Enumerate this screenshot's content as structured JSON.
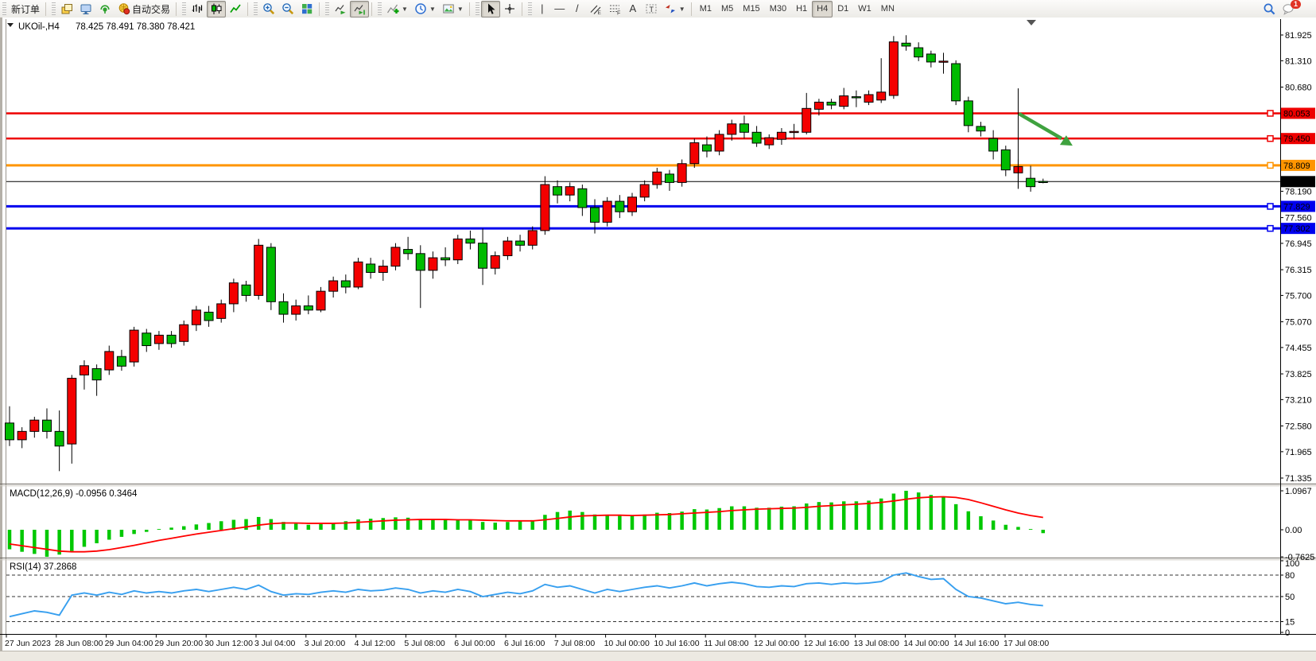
{
  "toolbar": {
    "groups": [
      {
        "items": [
          {
            "name": "new-order-button",
            "label": "新订单"
          }
        ]
      },
      {
        "items": [
          {
            "name": "charts-stack-button",
            "icon": "layers"
          },
          {
            "name": "terminal-button",
            "icon": "terminal"
          },
          {
            "name": "data-signal-button",
            "icon": "signal"
          },
          {
            "name": "autotrading-button",
            "icon": "autotrade",
            "label": "自动交易"
          }
        ]
      },
      {
        "items": [
          {
            "name": "bar-chart-button",
            "icon": "chart-bars"
          },
          {
            "name": "candlestick-chart-button",
            "icon": "chart-candles",
            "pressed": true
          },
          {
            "name": "line-chart-button",
            "icon": "chart-line"
          }
        ]
      },
      {
        "items": [
          {
            "name": "zoom-in-button",
            "icon": "zoom-in"
          },
          {
            "name": "zoom-out-button",
            "icon": "zoom-out"
          },
          {
            "name": "tile-windows-button",
            "icon": "tile-windows"
          }
        ]
      },
      {
        "items": [
          {
            "name": "auto-scroll-button",
            "icon": "auto-scroll"
          },
          {
            "name": "chart-shift-button",
            "icon": "chart-shift",
            "pressed": true
          }
        ]
      },
      {
        "items": [
          {
            "name": "indicators-button",
            "icon": "indicators-add",
            "caret": true
          },
          {
            "name": "periods-button",
            "icon": "periods-clock",
            "caret": true
          },
          {
            "name": "templates-button",
            "icon": "templates",
            "caret": true
          }
        ]
      },
      {
        "items": [
          {
            "name": "cursor-button",
            "icon": "cursor",
            "pressed": true
          },
          {
            "name": "crosshair-button",
            "icon": "crosshair"
          }
        ]
      },
      {
        "items": [
          {
            "name": "vertical-line-button",
            "glyph": "|"
          },
          {
            "name": "horizontal-line-button",
            "glyph": "—"
          },
          {
            "name": "trendline-button",
            "glyph": "/"
          },
          {
            "name": "equidistant-channel-button",
            "icon": "channel"
          },
          {
            "name": "fibonacci-button",
            "icon": "fibonacci"
          },
          {
            "name": "text-button",
            "glyph": "A"
          },
          {
            "name": "text-label-button",
            "icon": "text-label"
          },
          {
            "name": "arrows-tool-button",
            "icon": "arrows-tool",
            "caret": true
          }
        ]
      }
    ],
    "timeframes": [
      {
        "name": "tf-m1",
        "label": "M1"
      },
      {
        "name": "tf-m5",
        "label": "M5"
      },
      {
        "name": "tf-m15",
        "label": "M15"
      },
      {
        "name": "tf-m30",
        "label": "M30"
      },
      {
        "name": "tf-h1",
        "label": "H1"
      },
      {
        "name": "tf-h4",
        "label": "H4",
        "pressed": true
      },
      {
        "name": "tf-d1",
        "label": "D1"
      },
      {
        "name": "tf-w1",
        "label": "W1"
      },
      {
        "name": "tf-mn",
        "label": "MN"
      }
    ],
    "right": [
      {
        "name": "search-button",
        "icon": "search"
      },
      {
        "name": "notifications-button",
        "icon": "chat",
        "badge": "1"
      }
    ]
  },
  "chart": {
    "title": "UKOil-,H4",
    "ohlc_text": "78.425 78.491 78.380 78.421"
  },
  "chart_data": {
    "type": "candlestick",
    "symbol": "UKOil-",
    "timeframe": "H4",
    "current_bar": {
      "open": 78.425,
      "high": 78.491,
      "low": 78.38,
      "close": 78.421
    },
    "colors": {
      "bull_candle": "#f40000",
      "bear_candle": "#00bb00",
      "wick": "#000000",
      "macd_histogram": "#00c800",
      "macd_signal": "#ff0000",
      "rsi_line": "#379fef",
      "level_red": "#ee0000",
      "level_orange": "#ff9500",
      "level_blue": "#0000ee",
      "price_line": "#000000",
      "arrow_annotation": "#3fa23f"
    },
    "ylim": [
      71.335,
      81.925
    ],
    "y_axis_ticks": [
      "81.925",
      "81.310",
      "80.680",
      "78.190",
      "77.560",
      "76.945",
      "76.315",
      "75.700",
      "75.070",
      "74.455",
      "73.825",
      "73.210",
      "72.580",
      "71.965",
      "71.335"
    ],
    "horizontal_lines": [
      {
        "price": 80.053,
        "label": "80.053",
        "color": "#ee0000",
        "width": 2.5,
        "is_price_line": false
      },
      {
        "price": 79.45,
        "label": "79.450",
        "color": "#ee0000",
        "width": 2.5,
        "is_price_line": false
      },
      {
        "price": 78.809,
        "label": "78.809",
        "color": "#ff9500",
        "width": 3,
        "is_price_line": false
      },
      {
        "price": 78.421,
        "label": "78.421",
        "color": "#000000",
        "width": 1,
        "is_price_line": true
      },
      {
        "price": 77.829,
        "label": "77.829",
        "color": "#0000ee",
        "width": 3,
        "is_price_line": false
      },
      {
        "price": 77.302,
        "label": "77.302",
        "color": "#0000ee",
        "width": 3,
        "is_price_line": false
      }
    ],
    "time_labels": [
      "27 Jun 2023",
      "28 Jun 08:00",
      "29 Jun 04:00",
      "29 Jun 20:00",
      "30 Jun 12:00",
      "3 Jul 04:00",
      "3 Jul 20:00",
      "4 Jul 12:00",
      "5 Jul 08:00",
      "6 Jul 00:00",
      "6 Jul 16:00",
      "7 Jul 08:00",
      "10 Jul 00:00",
      "10 Jul 16:00",
      "11 Jul 08:00",
      "12 Jul 00:00",
      "12 Jul 16:00",
      "13 Jul 08:00",
      "14 Jul 00:00",
      "14 Jul 16:00",
      "17 Jul 08:00"
    ],
    "candles_ohlc": [
      [
        72.65,
        73.05,
        72.1,
        72.25
      ],
      [
        72.25,
        72.55,
        72.05,
        72.45
      ],
      [
        72.45,
        72.8,
        72.3,
        72.72
      ],
      [
        72.72,
        73.0,
        72.28,
        72.45
      ],
      [
        72.45,
        72.95,
        71.5,
        72.1
      ],
      [
        72.15,
        73.8,
        71.68,
        73.72
      ],
      [
        73.8,
        74.15,
        73.45,
        74.02
      ],
      [
        73.95,
        74.05,
        73.3,
        73.68
      ],
      [
        73.92,
        74.5,
        73.8,
        74.36
      ],
      [
        74.24,
        74.4,
        73.9,
        74.01
      ],
      [
        74.11,
        74.95,
        74.0,
        74.87
      ],
      [
        74.8,
        74.9,
        74.35,
        74.5
      ],
      [
        74.55,
        74.85,
        74.4,
        74.75
      ],
      [
        74.75,
        74.85,
        74.45,
        74.55
      ],
      [
        74.6,
        75.1,
        74.5,
        75.0
      ],
      [
        75.0,
        75.45,
        74.85,
        75.35
      ],
      [
        75.3,
        75.45,
        74.95,
        75.1
      ],
      [
        75.15,
        75.6,
        75.05,
        75.5
      ],
      [
        75.5,
        76.1,
        75.3,
        76.0
      ],
      [
        75.95,
        76.05,
        75.55,
        75.7
      ],
      [
        75.7,
        77.05,
        75.6,
        76.9
      ],
      [
        76.85,
        76.95,
        75.35,
        75.55
      ],
      [
        75.55,
        75.75,
        75.05,
        75.25
      ],
      [
        75.25,
        75.6,
        75.1,
        75.45
      ],
      [
        75.45,
        75.7,
        75.25,
        75.35
      ],
      [
        75.35,
        75.9,
        75.3,
        75.8
      ],
      [
        75.8,
        76.15,
        75.65,
        76.05
      ],
      [
        76.05,
        76.2,
        75.75,
        75.9
      ],
      [
        75.9,
        76.6,
        75.85,
        76.5
      ],
      [
        76.45,
        76.6,
        76.1,
        76.25
      ],
      [
        76.25,
        76.55,
        76.05,
        76.4
      ],
      [
        76.4,
        76.95,
        76.3,
        76.85
      ],
      [
        76.8,
        77.1,
        76.55,
        76.7
      ],
      [
        76.7,
        76.9,
        75.4,
        76.3
      ],
      [
        76.3,
        76.75,
        76.1,
        76.6
      ],
      [
        76.6,
        76.85,
        76.4,
        76.55
      ],
      [
        76.55,
        77.15,
        76.45,
        77.05
      ],
      [
        77.05,
        77.25,
        76.8,
        76.95
      ],
      [
        76.95,
        77.3,
        75.95,
        76.35
      ],
      [
        76.35,
        76.75,
        76.2,
        76.65
      ],
      [
        76.65,
        77.1,
        76.55,
        77.0
      ],
      [
        77.0,
        77.15,
        76.75,
        76.9
      ],
      [
        76.9,
        77.35,
        76.8,
        77.25
      ],
      [
        77.25,
        78.55,
        77.15,
        78.35
      ],
      [
        78.3,
        78.45,
        77.9,
        78.1
      ],
      [
        78.1,
        78.4,
        77.95,
        78.3
      ],
      [
        78.25,
        78.35,
        77.6,
        77.8
      ],
      [
        77.8,
        78.0,
        77.18,
        77.45
      ],
      [
        77.45,
        78.05,
        77.35,
        77.95
      ],
      [
        77.95,
        78.1,
        77.55,
        77.7
      ],
      [
        77.7,
        78.15,
        77.6,
        78.05
      ],
      [
        78.05,
        78.45,
        77.95,
        78.35
      ],
      [
        78.35,
        78.75,
        78.25,
        78.65
      ],
      [
        78.6,
        78.7,
        78.2,
        78.4
      ],
      [
        78.4,
        78.95,
        78.3,
        78.85
      ],
      [
        78.85,
        79.45,
        78.75,
        79.35
      ],
      [
        79.3,
        79.5,
        79.0,
        79.15
      ],
      [
        79.15,
        79.65,
        79.05,
        79.55
      ],
      [
        79.55,
        79.9,
        79.4,
        79.8
      ],
      [
        79.8,
        80.0,
        79.45,
        79.6
      ],
      [
        79.6,
        79.75,
        79.25,
        79.34
      ],
      [
        79.3,
        79.55,
        79.2,
        79.47
      ],
      [
        79.43,
        79.7,
        79.3,
        79.6
      ],
      [
        79.6,
        79.8,
        79.45,
        79.62
      ],
      [
        79.6,
        80.54,
        79.55,
        80.17
      ],
      [
        80.15,
        80.4,
        80.0,
        80.32
      ],
      [
        80.32,
        80.4,
        80.15,
        80.25
      ],
      [
        80.22,
        80.66,
        80.15,
        80.47
      ],
      [
        80.45,
        80.6,
        80.2,
        80.43
      ],
      [
        80.32,
        80.6,
        80.25,
        80.5
      ],
      [
        80.37,
        81.37,
        80.3,
        80.56
      ],
      [
        80.48,
        81.9,
        80.4,
        81.76
      ],
      [
        81.73,
        81.92,
        81.55,
        81.66
      ],
      [
        81.62,
        81.75,
        81.3,
        81.4
      ],
      [
        81.47,
        81.55,
        81.15,
        81.28
      ],
      [
        81.28,
        81.5,
        81.0,
        81.3
      ],
      [
        81.24,
        81.32,
        80.25,
        80.35
      ],
      [
        80.35,
        80.45,
        79.6,
        79.76
      ],
      [
        79.74,
        79.85,
        79.5,
        79.63
      ],
      [
        79.45,
        79.65,
        78.95,
        79.15
      ],
      [
        79.18,
        79.28,
        78.55,
        78.7
      ],
      [
        78.63,
        78.95,
        78.25,
        78.78
      ],
      [
        78.5,
        78.8,
        78.18,
        78.3
      ],
      [
        78.425,
        78.491,
        78.38,
        78.421
      ]
    ],
    "macd": {
      "label_text": "MACD(12,26,9) -0.0956 0.3464",
      "main_value": -0.0956,
      "signal_value": 0.3464,
      "scale_labels": [
        "1.0967",
        "0.00",
        "-0.7625"
      ],
      "scale_values": [
        1.0967,
        0.0,
        -0.7625
      ],
      "histogram": [
        -0.55,
        -0.62,
        -0.68,
        -0.7625,
        -0.7,
        -0.6,
        -0.48,
        -0.38,
        -0.28,
        -0.2,
        -0.12,
        -0.06,
        0.02,
        0.06,
        0.1,
        0.15,
        0.19,
        0.24,
        0.28,
        0.3,
        0.36,
        0.3,
        0.22,
        0.17,
        0.14,
        0.16,
        0.2,
        0.24,
        0.29,
        0.31,
        0.33,
        0.35,
        0.34,
        0.3,
        0.28,
        0.27,
        0.28,
        0.27,
        0.22,
        0.2,
        0.22,
        0.24,
        0.27,
        0.42,
        0.5,
        0.54,
        0.5,
        0.43,
        0.41,
        0.39,
        0.39,
        0.43,
        0.48,
        0.47,
        0.51,
        0.58,
        0.57,
        0.61,
        0.66,
        0.66,
        0.62,
        0.62,
        0.65,
        0.66,
        0.74,
        0.78,
        0.77,
        0.8,
        0.8,
        0.82,
        0.88,
        1.02,
        1.0967,
        1.05,
        0.98,
        0.92,
        0.72,
        0.52,
        0.38,
        0.26,
        0.14,
        0.08,
        0.02,
        -0.0956
      ],
      "signal": [
        -0.4,
        -0.45,
        -0.5,
        -0.55,
        -0.6,
        -0.62,
        -0.62,
        -0.6,
        -0.56,
        -0.5,
        -0.44,
        -0.37,
        -0.3,
        -0.24,
        -0.18,
        -0.12,
        -0.07,
        -0.02,
        0.03,
        0.08,
        0.13,
        0.17,
        0.19,
        0.19,
        0.18,
        0.18,
        0.18,
        0.19,
        0.21,
        0.23,
        0.25,
        0.27,
        0.28,
        0.29,
        0.29,
        0.29,
        0.28,
        0.28,
        0.27,
        0.26,
        0.25,
        0.25,
        0.25,
        0.28,
        0.32,
        0.36,
        0.39,
        0.4,
        0.41,
        0.41,
        0.4,
        0.41,
        0.42,
        0.43,
        0.45,
        0.47,
        0.49,
        0.51,
        0.54,
        0.56,
        0.58,
        0.59,
        0.6,
        0.61,
        0.63,
        0.66,
        0.68,
        0.7,
        0.72,
        0.74,
        0.77,
        0.81,
        0.86,
        0.9,
        0.92,
        0.93,
        0.91,
        0.85,
        0.76,
        0.66,
        0.56,
        0.47,
        0.4,
        0.3464
      ]
    },
    "rsi": {
      "label_text": "RSI(14) 37.2868",
      "current_value": 37.2868,
      "levels_dashed": [
        80,
        50,
        15
      ],
      "scale_labels": [
        "100",
        "80",
        "50",
        "15",
        "0"
      ],
      "scale_values": [
        100,
        80,
        50,
        15,
        0
      ],
      "values": [
        22,
        26,
        30,
        28,
        24,
        52,
        55,
        52,
        56,
        53,
        58,
        55,
        57,
        55,
        58,
        60,
        57,
        60,
        63,
        60,
        66,
        57,
        52,
        54,
        53,
        56,
        58,
        56,
        60,
        58,
        59,
        62,
        60,
        55,
        58,
        56,
        60,
        57,
        50,
        53,
        56,
        54,
        58,
        67,
        63,
        65,
        60,
        55,
        60,
        57,
        60,
        63,
        65,
        62,
        65,
        69,
        65,
        68,
        70,
        68,
        64,
        63,
        65,
        64,
        68,
        69,
        67,
        69,
        68,
        69,
        71,
        80,
        83,
        78,
        74,
        75,
        60,
        50,
        48,
        44,
        40,
        42,
        39,
        37.2868
      ]
    },
    "annotations": {
      "arrow": {
        "type": "arrow",
        "color": "#3fa23f",
        "from_bar": 81,
        "from_price": 80.1,
        "to_bar": 85.5,
        "to_price": 79.3,
        "direction": "down-right"
      },
      "vertical_line": {
        "type": "vline",
        "at_bar": 81,
        "from_price": 80.65,
        "to_price": 78.25,
        "color": "#000000"
      }
    },
    "legend_position": "none",
    "grid": "off"
  }
}
